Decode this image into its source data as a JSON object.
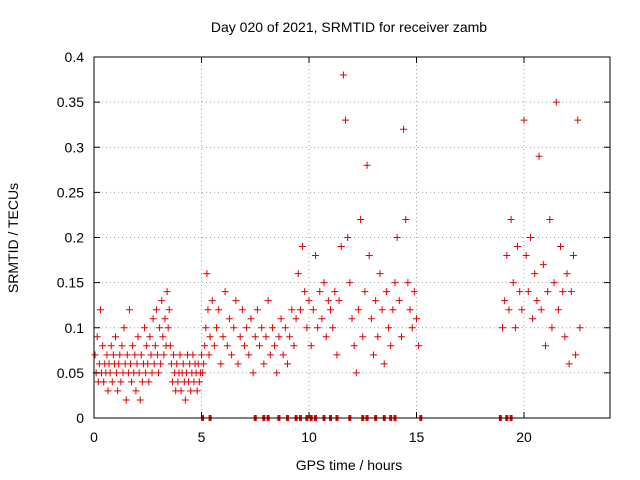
{
  "chart_data": {
    "type": "scatter",
    "title": "Day 020 of 2021, SRMTID for receiver zamb",
    "xlabel": "GPS time / hours",
    "ylabel": "SRMTID / TECUs",
    "xlim": [
      0,
      24
    ],
    "ylim": [
      0,
      0.4
    ],
    "x_ticks": [
      0,
      5,
      10,
      15,
      20
    ],
    "y_ticks": [
      0,
      0.05,
      0.1,
      0.15,
      0.2,
      0.25,
      0.3,
      0.35,
      0.4
    ],
    "x_tick_labels": [
      "0",
      "5",
      "10",
      "15",
      "20"
    ],
    "y_tick_labels": [
      "0",
      "0.05",
      "0.1",
      "0.15",
      "0.2",
      "0.25",
      "0.3",
      "0.35",
      "0.4"
    ],
    "grid": true,
    "marker": "plus",
    "color": "#e00000",
    "series": [
      {
        "name": "SRMTID",
        "x": [
          0.05,
          0.1,
          0.15,
          0.2,
          0.25,
          0.3,
          0.35,
          0.4,
          0.45,
          0.5,
          0.55,
          0.6,
          0.65,
          0.7,
          0.75,
          0.8,
          0.85,
          0.9,
          0.95,
          1.0,
          1.05,
          1.1,
          1.15,
          1.2,
          1.25,
          1.3,
          1.35,
          1.4,
          1.45,
          1.5,
          1.55,
          1.6,
          1.65,
          1.7,
          1.75,
          1.8,
          1.85,
          1.9,
          1.95,
          2.0,
          2.05,
          2.1,
          2.15,
          2.2,
          2.25,
          2.3,
          2.35,
          2.4,
          2.45,
          2.5,
          2.55,
          2.6,
          2.65,
          2.7,
          2.75,
          2.8,
          2.85,
          2.9,
          2.95,
          3.0,
          3.05,
          3.1,
          3.15,
          3.2,
          3.25,
          3.3,
          3.35,
          3.4,
          3.45,
          3.5,
          3.55,
          3.6,
          3.65,
          3.7,
          3.75,
          3.8,
          3.85,
          3.9,
          3.95,
          4.0,
          4.05,
          4.1,
          4.15,
          4.2,
          4.25,
          4.3,
          4.35,
          4.4,
          4.45,
          4.5,
          4.55,
          4.6,
          4.65,
          4.7,
          4.75,
          4.8,
          4.85,
          4.9,
          4.95,
          5.0,
          5.05,
          5.1,
          5.15,
          5.2,
          5.25,
          5.3,
          5.35,
          5.4,
          5.5,
          5.6,
          5.7,
          5.8,
          5.9,
          6.0,
          6.1,
          6.2,
          6.3,
          6.4,
          6.5,
          6.6,
          6.7,
          6.8,
          6.9,
          7.0,
          7.1,
          7.2,
          7.3,
          7.4,
          7.5,
          7.6,
          7.7,
          7.8,
          7.9,
          8.0,
          8.1,
          8.2,
          8.3,
          8.4,
          8.5,
          8.6,
          8.7,
          8.8,
          8.9,
          9.0,
          9.1,
          9.2,
          9.3,
          9.4,
          9.5,
          9.6,
          9.7,
          9.8,
          9.9,
          10.0,
          10.1,
          10.2,
          10.3,
          10.4,
          10.5,
          10.6,
          10.7,
          10.8,
          10.9,
          11.0,
          11.1,
          11.2,
          11.3,
          11.4,
          11.5,
          11.6,
          11.7,
          11.8,
          11.9,
          12.0,
          12.1,
          12.2,
          12.3,
          12.4,
          12.5,
          12.6,
          12.7,
          12.8,
          12.9,
          13.0,
          13.1,
          13.2,
          13.3,
          13.4,
          13.5,
          13.6,
          13.7,
          13.8,
          13.9,
          14.0,
          14.1,
          14.2,
          14.3,
          14.4,
          14.5,
          14.6,
          14.7,
          14.8,
          14.9,
          15.0,
          15.1,
          19.0,
          19.1,
          19.2,
          19.3,
          19.4,
          19.5,
          19.6,
          19.7,
          19.8,
          19.9,
          20.0,
          20.1,
          20.2,
          20.3,
          20.4,
          20.5,
          20.6,
          20.7,
          20.8,
          20.9,
          21.0,
          21.1,
          21.2,
          21.3,
          21.4,
          21.5,
          21.6,
          21.7,
          21.8,
          21.9,
          22.0,
          22.1,
          22.2,
          22.3,
          22.4,
          22.5,
          22.6
        ],
        "y": [
          0.07,
          0.05,
          0.09,
          0.04,
          0.06,
          0.12,
          0.05,
          0.08,
          0.04,
          0.06,
          0.05,
          0.07,
          0.03,
          0.06,
          0.05,
          0.08,
          0.04,
          0.07,
          0.06,
          0.09,
          0.05,
          0.03,
          0.06,
          0.07,
          0.04,
          0.08,
          0.05,
          0.1,
          0.06,
          0.02,
          0.07,
          0.05,
          0.12,
          0.06,
          0.04,
          0.08,
          0.05,
          0.07,
          0.03,
          0.06,
          0.09,
          0.05,
          0.02,
          0.07,
          0.04,
          0.06,
          0.1,
          0.05,
          0.08,
          0.06,
          0.04,
          0.09,
          0.07,
          0.05,
          0.11,
          0.06,
          0.08,
          0.12,
          0.07,
          0.05,
          0.1,
          0.06,
          0.13,
          0.09,
          0.07,
          0.11,
          0.08,
          0.14,
          0.1,
          0.12,
          0.08,
          0.06,
          0.04,
          0.07,
          0.05,
          0.03,
          0.06,
          0.04,
          0.05,
          0.07,
          0.03,
          0.05,
          0.06,
          0.04,
          0.02,
          0.05,
          0.07,
          0.04,
          0.06,
          0.03,
          0.05,
          0.07,
          0.04,
          0.06,
          0.05,
          0.03,
          0.06,
          0.04,
          0.05,
          0.07,
          0.05,
          0.06,
          0.08,
          0.1,
          0.16,
          0.12,
          0.07,
          0.09,
          0.13,
          0.08,
          0.1,
          0.12,
          0.06,
          0.09,
          0.14,
          0.08,
          0.11,
          0.07,
          0.1,
          0.13,
          0.06,
          0.09,
          0.12,
          0.08,
          0.1,
          0.07,
          0.11,
          0.05,
          0.09,
          0.12,
          0.08,
          0.1,
          0.06,
          0.09,
          0.13,
          0.07,
          0.1,
          0.08,
          0.05,
          0.09,
          0.11,
          0.07,
          0.1,
          0.06,
          0.09,
          0.12,
          0.08,
          0.11,
          0.16,
          0.12,
          0.19,
          0.14,
          0.1,
          0.13,
          0.08,
          0.12,
          0.18,
          0.1,
          0.14,
          0.11,
          0.15,
          0.09,
          0.13,
          0.12,
          0.1,
          0.14,
          0.07,
          0.13,
          0.19,
          0.38,
          0.33,
          0.2,
          0.15,
          0.11,
          0.08,
          0.05,
          0.12,
          0.22,
          0.09,
          0.14,
          0.28,
          0.18,
          0.11,
          0.07,
          0.13,
          0.09,
          0.16,
          0.12,
          0.06,
          0.14,
          0.1,
          0.08,
          0.12,
          0.15,
          0.2,
          0.13,
          0.09,
          0.32,
          0.22,
          0.15,
          0.12,
          0.1,
          0.14,
          0.11,
          0.08,
          0.1,
          0.13,
          0.18,
          0.12,
          0.22,
          0.15,
          0.1,
          0.19,
          0.14,
          0.12,
          0.33,
          0.18,
          0.14,
          0.2,
          0.11,
          0.16,
          0.13,
          0.29,
          0.12,
          0.17,
          0.08,
          0.14,
          0.22,
          0.1,
          0.15,
          0.35,
          0.12,
          0.19,
          0.14,
          0.09,
          0.16,
          0.06,
          0.14,
          0.18,
          0.07,
          0.33,
          0.1
        ]
      }
    ],
    "rug_x": [
      5.05,
      5.4,
      7.5,
      7.9,
      8.1,
      8.6,
      9.0,
      9.4,
      9.6,
      9.9,
      10.1,
      10.3,
      10.7,
      11.0,
      11.3,
      11.9,
      12.5,
      12.7,
      13.1,
      13.5,
      13.8,
      14.0,
      15.2,
      18.9,
      19.2,
      19.4
    ]
  }
}
